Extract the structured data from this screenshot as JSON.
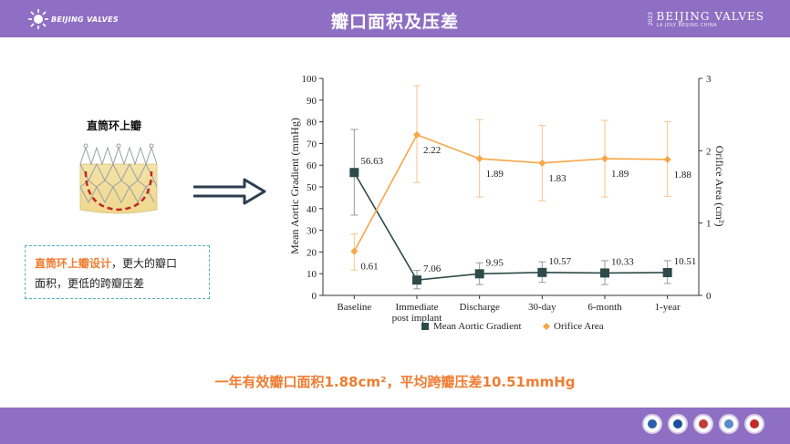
{
  "header": {
    "title": "瓣口面积及压差",
    "logo_left": "BEIJING VALVES",
    "logo_right_brand": "BEIJING VALVES",
    "logo_right_year": "2023",
    "logo_right_sub": "LA JOLY BEIJING CHINA"
  },
  "left": {
    "valve_title": "直筒环上瓣",
    "design_highlight": "直筒环上瓣设计",
    "design_rest_1": "，更大的瓣口",
    "design_rest_2": "面积，更低的跨瓣压差"
  },
  "conclusion": "一年有效瓣口面积1.88cm²，平均跨瓣压差10.51mmHg",
  "colors": {
    "header_bg": "#8e6fc4",
    "accent_orange": "#ef7d32",
    "gradient_series": "#2f4a4a",
    "area_series": "#f7a647",
    "box_border": "#4fb3c6"
  },
  "chart_data": {
    "type": "line",
    "categories": [
      "Baseline",
      "Immediate post implant",
      "Discharge",
      "30-day",
      "6-month",
      "1-year"
    ],
    "category_lines": [
      [
        "Baseline"
      ],
      [
        "Immediate",
        "post implant"
      ],
      [
        "Discharge"
      ],
      [
        "30-day"
      ],
      [
        "6-month"
      ],
      [
        "1-year"
      ]
    ],
    "ylabel_left": "Mean Aortic Gradient (mmHg)",
    "ylabel_right": "Orifice Area (cm²)",
    "ylim_left": [
      0,
      100
    ],
    "ylim_right": [
      0,
      3
    ],
    "yticks_left": [
      0,
      10,
      20,
      30,
      40,
      50,
      60,
      70,
      80,
      90,
      100
    ],
    "yticks_right": [
      0,
      1,
      2,
      3
    ],
    "grid": false,
    "legend_position": "bottom",
    "series": [
      {
        "name": "Mean Aortic Gradient",
        "axis": "left",
        "marker": "square",
        "values": [
          56.63,
          7.06,
          9.95,
          10.57,
          10.33,
          10.51
        ],
        "labels": [
          "56.63",
          "7.06",
          "9.95",
          "10.57",
          "10.33",
          "10.51"
        ],
        "err_high": [
          76.5,
          11.5,
          15.0,
          15.5,
          16.0,
          16.0
        ],
        "err_low": [
          37.0,
          3.0,
          5.0,
          6.0,
          5.0,
          5.5
        ]
      },
      {
        "name": "Orifice Area",
        "axis": "right",
        "marker": "diamond",
        "values": [
          0.61,
          2.22,
          1.89,
          1.83,
          1.89,
          1.88
        ],
        "labels": [
          "0.61",
          "2.22",
          "1.89",
          "1.83",
          "1.89",
          "1.88"
        ],
        "err_high": [
          0.85,
          2.9,
          2.43,
          2.35,
          2.42,
          2.4
        ],
        "err_low": [
          0.35,
          1.56,
          1.36,
          1.31,
          1.36,
          1.37
        ]
      }
    ]
  }
}
